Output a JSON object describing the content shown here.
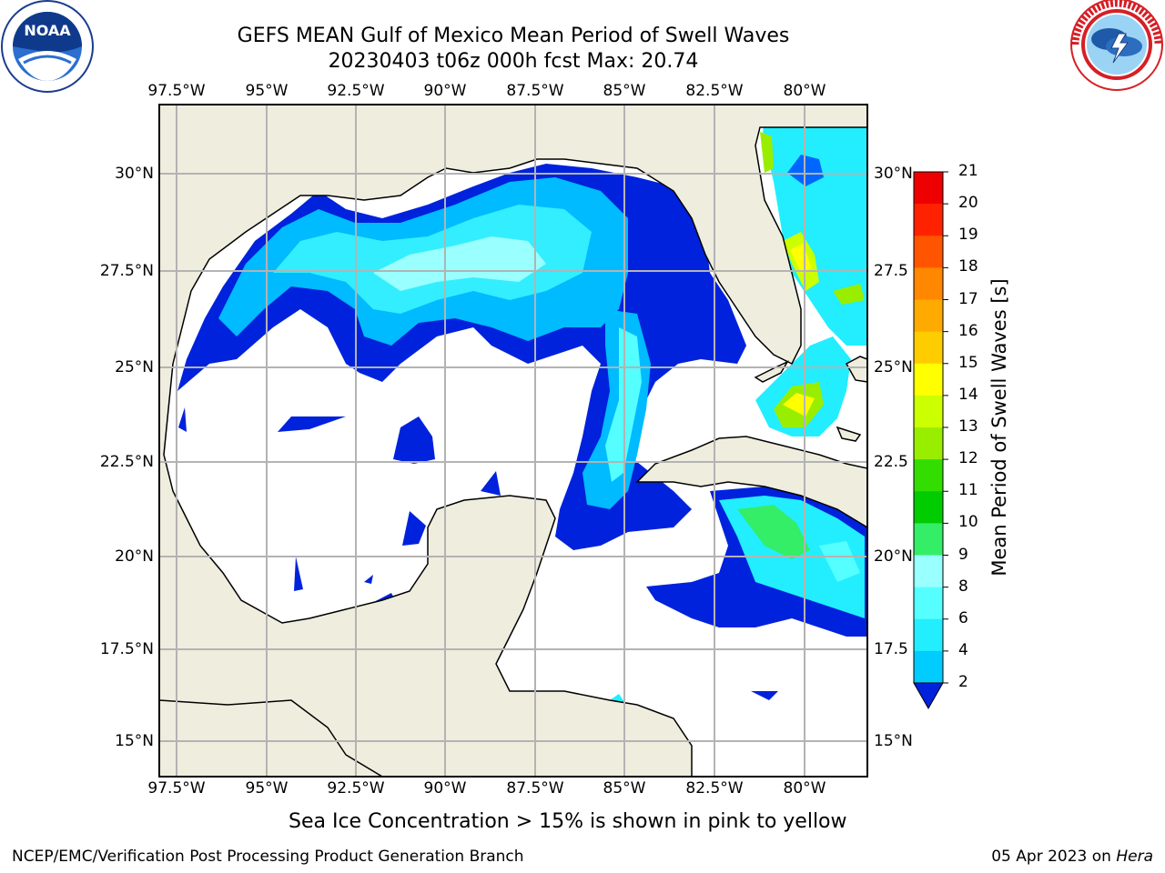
{
  "header": {
    "title_line1": "GEFS MEAN Gulf of Mexico Mean Period of Swell Waves",
    "title_line2": "20230403 t06z 000h fcst   Max: 20.74"
  },
  "logos": {
    "left": "noaa-logo",
    "left_text": "NOAA",
    "left_ring_text": "NATIONAL OCEANIC AND ATMOSPHERIC ADMINISTRATION · U.S. DEPARTMENT OF COMMERCE",
    "right": "nws-logo",
    "right_ring_text": "NATIONAL WEATHER SERVICE"
  },
  "map": {
    "lon_labels": [
      "97.5°W",
      "95°W",
      "92.5°W",
      "90°W",
      "87.5°W",
      "85°W",
      "82.5°W",
      "80°W"
    ],
    "lat_labels_left": [
      "30°N",
      "27.5°N",
      "25°N",
      "22.5°N",
      "20°N",
      "17.5°N",
      "15°N"
    ],
    "lat_labels_right": [
      "30°N",
      "27.5",
      "25°N",
      "22.5",
      "20°N",
      "17.5",
      "15°N"
    ],
    "land_color": "#efedde",
    "grid": true
  },
  "colorbar": {
    "label": "Mean Period of Swell Waves [s]",
    "ticks": [
      "2",
      "4",
      "6",
      "8",
      "9",
      "10",
      "11",
      "12",
      "13",
      "14",
      "15",
      "16",
      "17",
      "18",
      "19",
      "20",
      "21"
    ],
    "colors": [
      "#0066ff",
      "#00ccff",
      "#22eeff",
      "#55ffff",
      "#99ffff",
      "#33ee66",
      "#00cc00",
      "#33dd00",
      "#99ee00",
      "#ccff00",
      "#ffff00",
      "#ffcc00",
      "#ffaa00",
      "#ff8800",
      "#ff5500",
      "#ff2200",
      "#ee0000"
    ],
    "extend_color": "#0022dd"
  },
  "note": "Sea Ice Concentration > 15% is shown in pink to yellow",
  "footer": {
    "left": "NCEP/EMC/Verification Post Processing Product Generation Branch",
    "right_date": "05 Apr 2023 on ",
    "right_machine": "Hera"
  }
}
